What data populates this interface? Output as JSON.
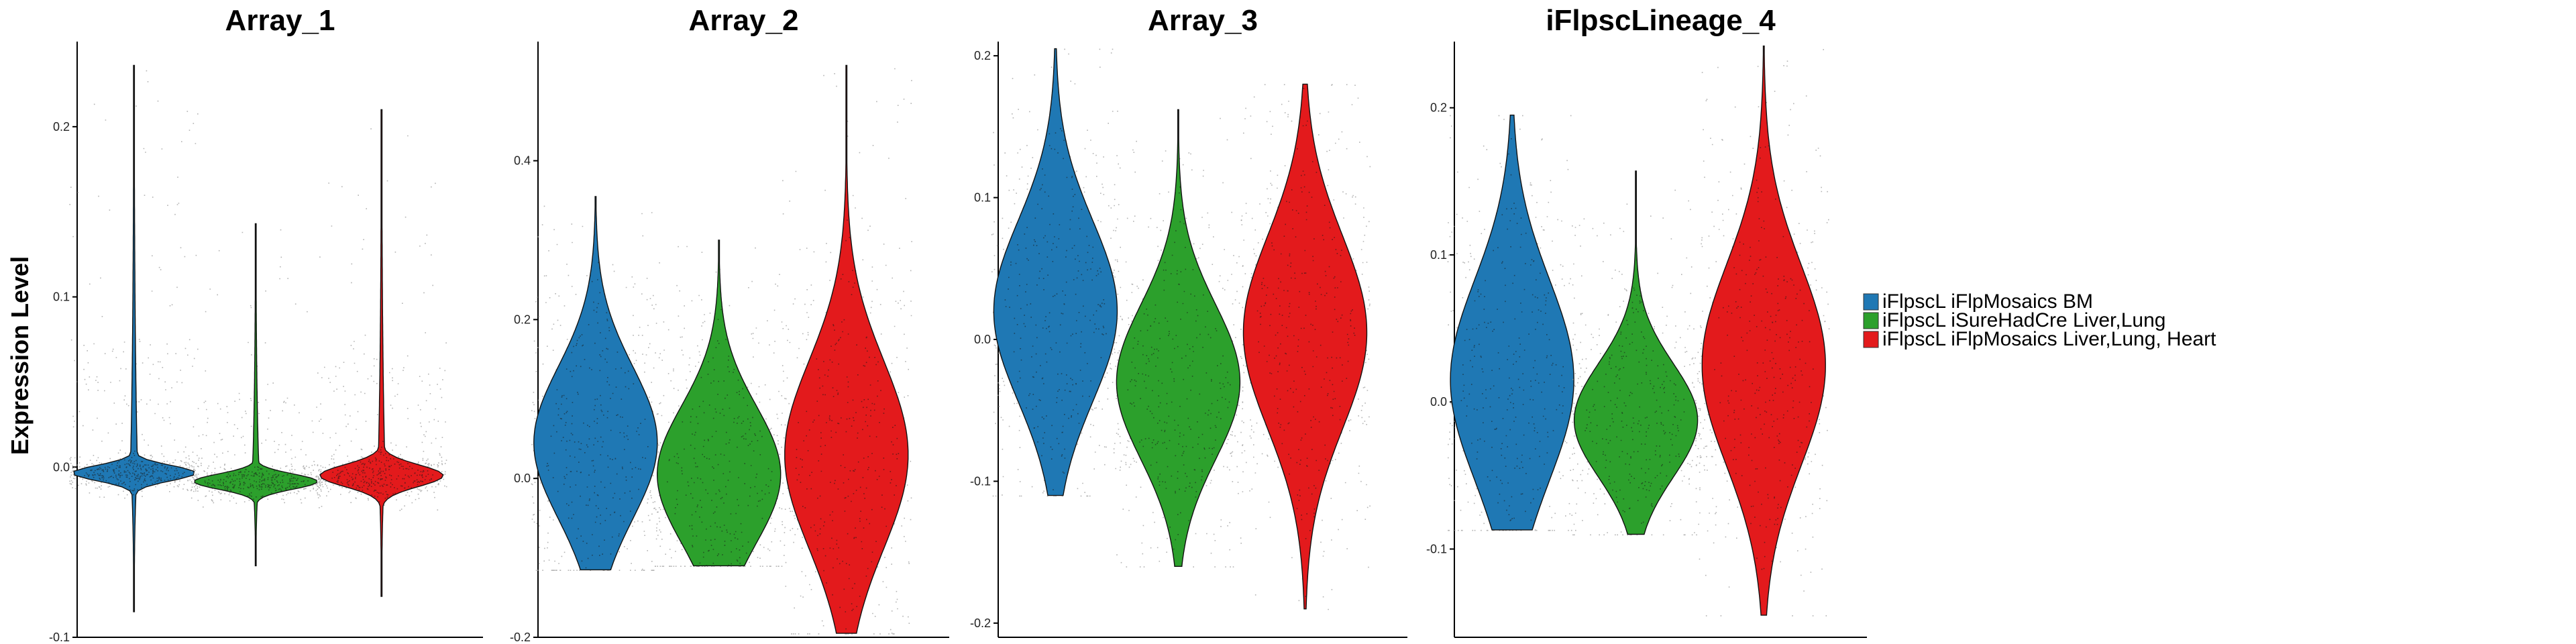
{
  "y_axis_label": "Expression Level",
  "legend": [
    {
      "label": "iFlpscL iFlpMosaics BM",
      "color": "#1f78b4"
    },
    {
      "label": "iFlpscL iSureHadCre Liver,Lung",
      "color": "#2ca02c"
    },
    {
      "label": "iFlpscL iFlpMosaics Liver,Lung, Heart",
      "color": "#e31a1c"
    }
  ],
  "chart_data": [
    {
      "type": "violin",
      "title": "Array_1",
      "ylim": [
        -0.1,
        0.25
      ],
      "yticks": [
        -0.1,
        0.0,
        0.1,
        0.2
      ],
      "ytick_labels": [
        "-0.1",
        "0.0",
        "0.1",
        "0.2"
      ],
      "series": [
        {
          "group": "iFlpscL iFlpMosaics BM",
          "min": -0.085,
          "max": 0.236,
          "core_low": -0.008,
          "core_high": 0.001,
          "median": -0.003
        },
        {
          "group": "iFlpscL iSureHadCre Liver,Lung",
          "min": -0.058,
          "max": 0.143,
          "core_low": -0.013,
          "core_high": -0.004,
          "median": -0.008
        },
        {
          "group": "iFlpscL iFlpMosaics Liver,Lung, Heart",
          "min": -0.076,
          "max": 0.21,
          "core_low": -0.012,
          "core_high": 0.002,
          "median": -0.005
        }
      ]
    },
    {
      "type": "violin",
      "title": "Array_2",
      "ylim": [
        -0.2,
        0.55
      ],
      "yticks": [
        -0.2,
        0.0,
        0.2,
        0.4
      ],
      "ytick_labels": [
        "-0.2",
        "0.0",
        "0.2",
        "0.4"
      ],
      "series": [
        {
          "group": "iFlpscL iFlpMosaics BM",
          "min": -0.115,
          "max": 0.355,
          "core_low": -0.06,
          "core_high": 0.15,
          "median": -0.02
        },
        {
          "group": "iFlpscL iSureHadCre Liver,Lung",
          "min": -0.11,
          "max": 0.3,
          "core_low": -0.09,
          "core_high": 0.1,
          "median": -0.045
        },
        {
          "group": "iFlpscL iFlpMosaics Liver,Lung, Heart",
          "min": -0.195,
          "max": 0.52,
          "core_low": -0.1,
          "core_high": 0.16,
          "median": -0.03
        }
      ]
    },
    {
      "type": "violin",
      "title": "Array_3",
      "ylim": [
        -0.21,
        0.21
      ],
      "yticks": [
        -0.2,
        -0.1,
        0.0,
        0.1,
        0.2
      ],
      "ytick_labels": [
        "-0.2",
        "-0.1",
        "0.0",
        "0.1",
        "0.2"
      ],
      "series": [
        {
          "group": "iFlpscL iFlpMosaics BM",
          "min": -0.11,
          "max": 0.205,
          "core_low": -0.05,
          "core_high": 0.09,
          "median": 0.01
        },
        {
          "group": "iFlpscL iSureHadCre Liver,Lung",
          "min": -0.16,
          "max": 0.162,
          "core_low": -0.09,
          "core_high": 0.03,
          "median": -0.065
        },
        {
          "group": "iFlpscL iFlpMosaics Liver,Lung, Heart",
          "min": -0.19,
          "max": 0.18,
          "core_low": -0.07,
          "core_high": 0.08,
          "median": -0.02
        }
      ]
    },
    {
      "type": "violin",
      "title": "iFlpscLineage_4",
      "ylim": [
        -0.16,
        0.245
      ],
      "yticks": [
        -0.1,
        0.0,
        0.1,
        0.2
      ],
      "ytick_labels": [
        "-0.1",
        "0.0",
        "0.1",
        "0.2"
      ],
      "series": [
        {
          "group": "iFlpscL iFlpMosaics BM",
          "min": -0.087,
          "max": 0.195,
          "core_low": -0.06,
          "core_high": 0.09,
          "median": 0.005
        },
        {
          "group": "iFlpscL iSureHadCre Liver,Lung",
          "min": -0.09,
          "max": 0.157,
          "core_low": -0.055,
          "core_high": 0.03,
          "median": -0.03
        },
        {
          "group": "iFlpscL iFlpMosaics Liver,Lung, Heart",
          "min": -0.145,
          "max": 0.242,
          "core_low": -0.05,
          "core_high": 0.1,
          "median": 0.0
        }
      ]
    }
  ]
}
